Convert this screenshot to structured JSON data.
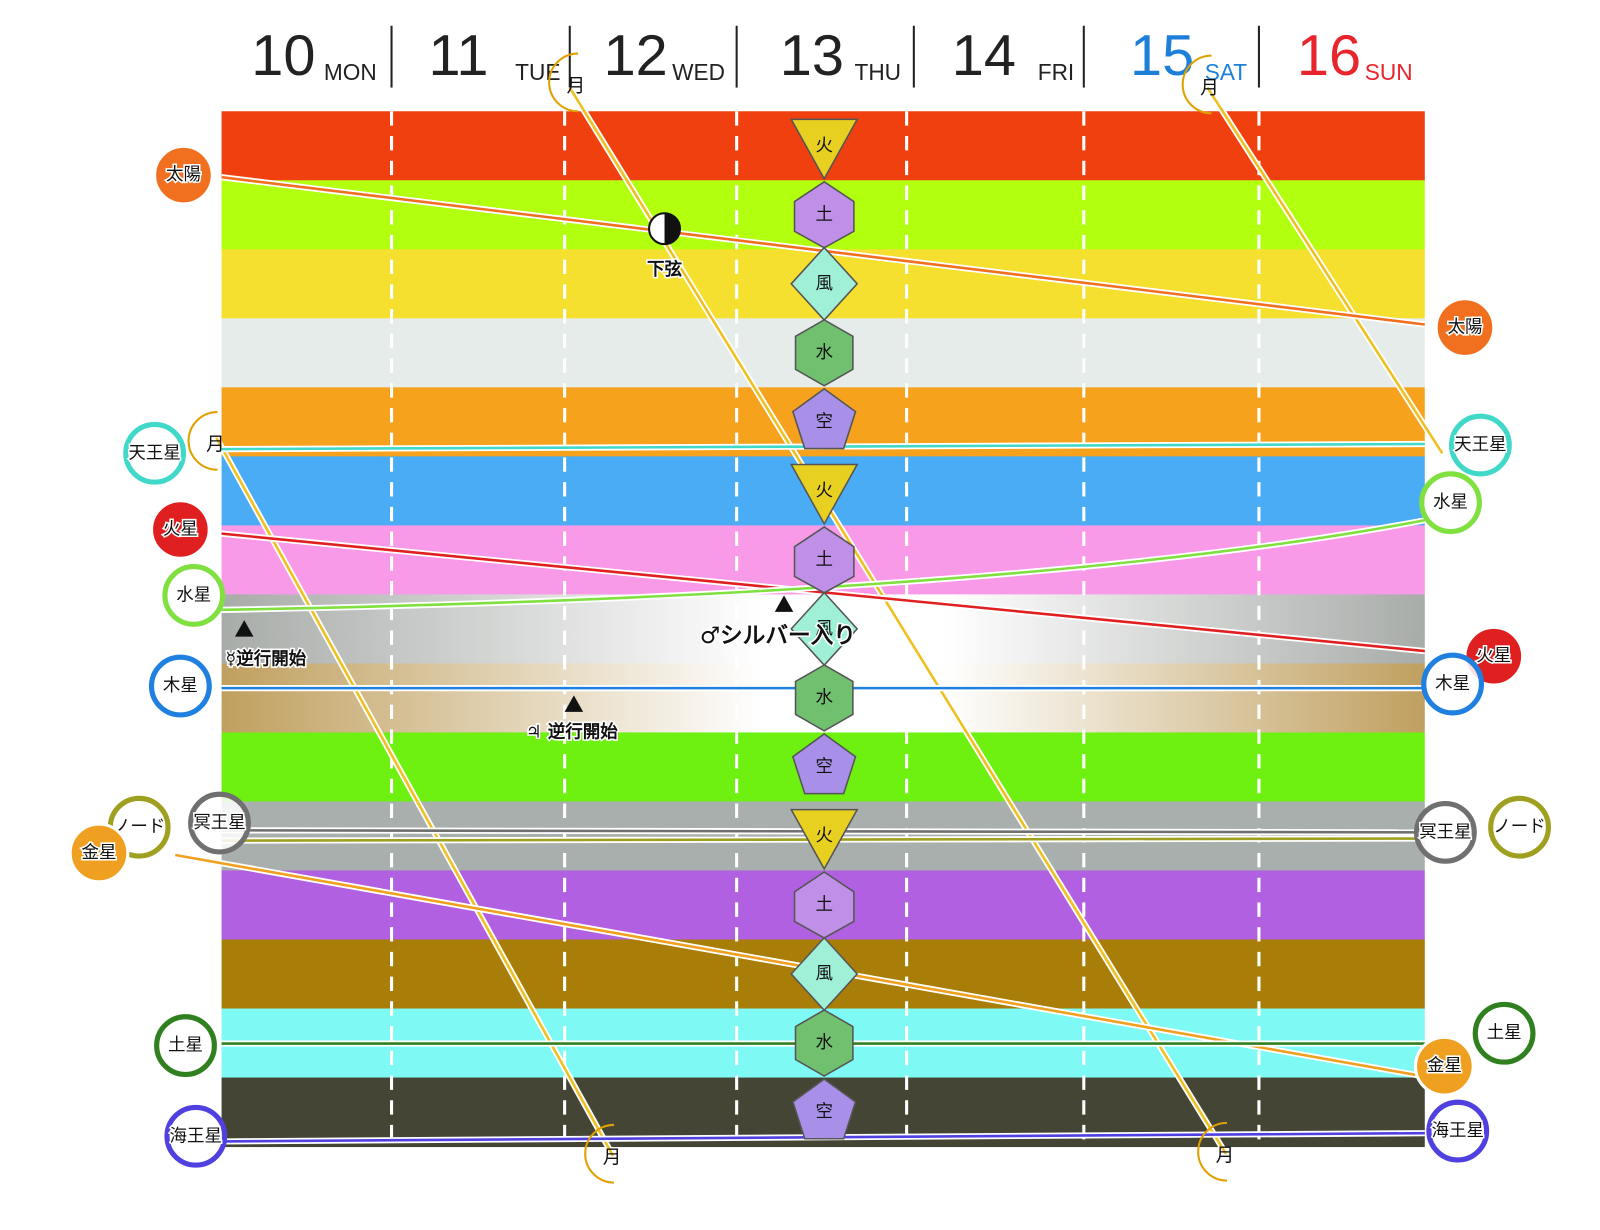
{
  "days": [
    {
      "day": 10,
      "weekday": "MON",
      "color": "#222222"
    },
    {
      "day": 11,
      "weekday": "TUE",
      "color": "#222222"
    },
    {
      "day": 12,
      "weekday": "WED",
      "color": "#222222"
    },
    {
      "day": 13,
      "weekday": "THU",
      "color": "#222222"
    },
    {
      "day": 14,
      "weekday": "FRI",
      "color": "#222222"
    },
    {
      "day": 15,
      "weekday": "SAT",
      "color": "#1e7fd8"
    },
    {
      "day": 16,
      "weekday": "SUN",
      "color": "#e8242c"
    }
  ],
  "bands": [
    {
      "color": "#f04010"
    },
    {
      "color": "#b2ff10"
    },
    {
      "color": "#f5e030"
    },
    {
      "color": "#e5ecea"
    },
    {
      "color": "#f7a21d"
    },
    {
      "color": "#4aacf5"
    },
    {
      "color": "#f99ae8"
    },
    {
      "color": "#a8aca9",
      "gradient": true
    },
    {
      "color": "#c0a060",
      "gradient": true
    },
    {
      "color": "#6ef010"
    },
    {
      "color": "#a9afac"
    },
    {
      "color": "#b060e0"
    },
    {
      "color": "#a87e08"
    },
    {
      "color": "#7ff9f3"
    },
    {
      "color": "#454535"
    }
  ],
  "elements": [
    "火",
    "土",
    "風",
    "水",
    "空",
    "火",
    "土",
    "風",
    "水",
    "空",
    "火",
    "土",
    "風",
    "水",
    "空"
  ],
  "planets": [
    {
      "left_label": "太陽",
      "right_label": "太陽",
      "color": "#f07020"
    },
    {
      "left_label": "天王星",
      "right_label": "天王星",
      "color": "#40d8c8"
    },
    {
      "left_label": "火星",
      "right_label": "火星",
      "color": "#e02020"
    },
    {
      "left_label": "水星",
      "right_label": "水星",
      "color": "#80e040"
    },
    {
      "left_label": "木星",
      "right_label": "木星",
      "color": "#2080e0"
    },
    {
      "left_label": "冥王星",
      "right_label": "冥王星",
      "color": "#707070"
    },
    {
      "left_label": "ノード",
      "right_label": "ノード",
      "color": "#a0a020"
    },
    {
      "left_label": "金星",
      "right_label": "金星",
      "color": "#f0a020"
    },
    {
      "left_label": "土星",
      "right_label": "土星",
      "color": "#308020"
    },
    {
      "left_label": "海王星",
      "right_label": "海王星",
      "color": "#5040e0"
    }
  ],
  "moon_labels": [
    "月",
    "月",
    "月",
    "月",
    "月"
  ],
  "events": [
    "下弦",
    "♂シルバー入り",
    "☿逆行開始",
    "♃ 逆行開始"
  ]
}
